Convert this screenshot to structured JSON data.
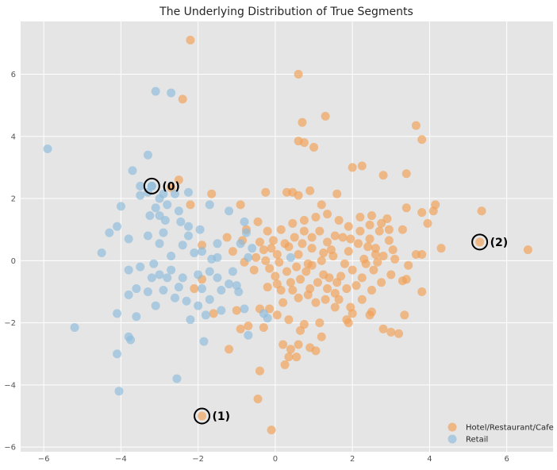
{
  "chart_data": {
    "type": "scatter",
    "title": "The Underlying Distribution of True Segments",
    "xlabel": "",
    "ylabel": "",
    "xlim": [
      -6.6,
      7.2
    ],
    "ylim": [
      -6.15,
      7.7
    ],
    "xticks": [
      -6,
      -4,
      -2,
      0,
      2,
      4,
      6
    ],
    "yticks": [
      -6,
      -4,
      -2,
      0,
      2,
      4,
      6
    ],
    "grid": true,
    "legend_position": "bottom-right",
    "colors": {
      "background": "#e5e5e5",
      "grid": "#ffffff",
      "Hotel/Restaurant/Cafe": "#f0a058",
      "Retail": "#8fbcdb"
    },
    "series": [
      {
        "name": "Hotel/Restaurant/Cafe",
        "points": [
          [
            -2.2,
            7.1
          ],
          [
            -2.4,
            5.2
          ],
          [
            0.6,
            6.0
          ],
          [
            0.7,
            4.45
          ],
          [
            1.3,
            4.65
          ],
          [
            0.6,
            3.85
          ],
          [
            0.75,
            3.8
          ],
          [
            1.0,
            3.65
          ],
          [
            3.65,
            4.35
          ],
          [
            3.8,
            3.9
          ],
          [
            2.0,
            3.0
          ],
          [
            2.25,
            3.05
          ],
          [
            2.8,
            2.75
          ],
          [
            3.4,
            2.8
          ],
          [
            -2.5,
            2.6
          ],
          [
            -2.7,
            2.35
          ],
          [
            -1.65,
            2.15
          ],
          [
            -0.25,
            2.2
          ],
          [
            0.3,
            2.2
          ],
          [
            0.45,
            2.2
          ],
          [
            0.6,
            2.1
          ],
          [
            0.9,
            2.25
          ],
          [
            1.6,
            2.15
          ],
          [
            -2.2,
            1.8
          ],
          [
            -0.9,
            1.8
          ],
          [
            1.2,
            1.8
          ],
          [
            4.15,
            1.8
          ],
          [
            4.1,
            1.6
          ],
          [
            5.35,
            1.6
          ],
          [
            3.4,
            1.7
          ],
          [
            2.2,
            1.4
          ],
          [
            2.5,
            1.45
          ],
          [
            2.9,
            1.35
          ],
          [
            2.75,
            1.2
          ],
          [
            3.8,
            1.55
          ],
          [
            3.95,
            1.2
          ],
          [
            3.3,
            1.0
          ],
          [
            2.95,
            1.0
          ],
          [
            -1.25,
            0.75
          ],
          [
            -0.85,
            0.65
          ],
          [
            -1.9,
            0.5
          ],
          [
            -1.1,
            0.3
          ],
          [
            -0.4,
            0.6
          ],
          [
            -0.8,
            -0.05
          ],
          [
            -1.9,
            -0.6
          ],
          [
            -2.1,
            -0.9
          ],
          [
            -1.0,
            -1.6
          ],
          [
            -0.4,
            -1.55
          ],
          [
            -1.6,
            -1.7
          ],
          [
            -0.7,
            -2.1
          ],
          [
            -0.3,
            -2.15
          ],
          [
            -0.9,
            -2.2
          ],
          [
            -1.2,
            -2.85
          ],
          [
            -0.4,
            -3.55
          ],
          [
            -0.45,
            -4.45
          ],
          [
            -0.1,
            -5.45
          ],
          [
            -1.9,
            -5.0
          ],
          [
            5.3,
            0.6
          ],
          [
            4.3,
            0.4
          ],
          [
            3.65,
            0.2
          ],
          [
            3.8,
            0.2
          ],
          [
            3.45,
            -0.15
          ],
          [
            3.3,
            -0.65
          ],
          [
            3.4,
            -0.6
          ],
          [
            3.8,
            -1.0
          ],
          [
            3.35,
            -1.75
          ],
          [
            2.8,
            -2.2
          ],
          [
            3.0,
            -2.3
          ],
          [
            3.2,
            -2.35
          ],
          [
            6.55,
            0.35
          ],
          [
            0.2,
            -2.7
          ],
          [
            0.4,
            -2.85
          ],
          [
            0.55,
            -3.1
          ],
          [
            0.35,
            -3.1
          ],
          [
            0.25,
            -3.35
          ],
          [
            0.6,
            -2.7
          ],
          [
            0.9,
            -2.8
          ],
          [
            1.05,
            -2.9
          ],
          [
            1.2,
            -2.45
          ],
          [
            1.15,
            -2.0
          ],
          [
            1.55,
            -1.5
          ],
          [
            1.85,
            -1.9
          ],
          [
            2.0,
            -1.7
          ],
          [
            2.45,
            -1.75
          ],
          [
            2.5,
            -1.65
          ],
          [
            1.9,
            -2.0
          ],
          [
            0.65,
            -2.25
          ],
          [
            0.75,
            -2.05
          ],
          [
            0.05,
            -1.75
          ],
          [
            0.35,
            -1.9
          ],
          [
            0.2,
            -1.35
          ],
          [
            -0.15,
            -1.55
          ],
          [
            -0.2,
            -0.85
          ],
          [
            0.05,
            -0.75
          ],
          [
            0.45,
            -0.95
          ],
          [
            0.65,
            -0.6
          ],
          [
            0.3,
            -0.35
          ],
          [
            0.55,
            -0.2
          ],
          [
            0.85,
            -0.1
          ],
          [
            0.1,
            -0.05
          ],
          [
            -0.1,
            0.4
          ],
          [
            0.25,
            0.55
          ],
          [
            0.7,
            0.55
          ],
          [
            0.95,
            0.4
          ],
          [
            1.25,
            0.25
          ],
          [
            1.35,
            0.6
          ],
          [
            1.55,
            0.8
          ],
          [
            1.75,
            0.75
          ],
          [
            1.95,
            0.7
          ],
          [
            2.15,
            0.55
          ],
          [
            2.4,
            0.45
          ],
          [
            2.6,
            0.4
          ],
          [
            2.8,
            0.15
          ],
          [
            2.55,
            -0.3
          ],
          [
            2.25,
            -0.55
          ],
          [
            2.1,
            -0.8
          ],
          [
            1.85,
            -0.9
          ],
          [
            1.55,
            -1.05
          ],
          [
            1.3,
            -1.25
          ],
          [
            1.05,
            -1.35
          ],
          [
            0.85,
            -1.1
          ],
          [
            0.6,
            -1.2
          ],
          [
            1.4,
            -0.55
          ],
          [
            1.7,
            -0.5
          ],
          [
            2.0,
            -0.3
          ],
          [
            1.8,
            -0.1
          ],
          [
            1.5,
            0.15
          ],
          [
            1.9,
            0.3
          ],
          [
            2.3,
            0.05
          ],
          [
            2.65,
            -0.05
          ],
          [
            2.45,
            0.7
          ],
          [
            2.2,
            0.95
          ],
          [
            1.9,
            1.1
          ],
          [
            1.65,
            1.3
          ],
          [
            1.35,
            1.5
          ],
          [
            1.05,
            1.4
          ],
          [
            0.75,
            1.3
          ],
          [
            0.45,
            1.2
          ],
          [
            0.15,
            1.0
          ],
          [
            -0.2,
            0.95
          ],
          [
            -0.45,
            1.25
          ],
          [
            -0.75,
            1.0
          ],
          [
            -0.5,
            0.1
          ],
          [
            -0.15,
            -0.25
          ],
          [
            0.0,
            -0.5
          ],
          [
            0.4,
            -0.7
          ],
          [
            0.8,
            -0.35
          ],
          [
            1.1,
            -0.7
          ],
          [
            1.35,
            -0.9
          ],
          [
            1.65,
            -1.25
          ],
          [
            1.95,
            -1.5
          ],
          [
            2.25,
            -1.25
          ],
          [
            2.5,
            -0.95
          ],
          [
            2.75,
            -0.7
          ],
          [
            3.0,
            -0.45
          ],
          [
            3.1,
            0.05
          ],
          [
            3.05,
            0.35
          ],
          [
            2.95,
            0.65
          ],
          [
            2.7,
            0.95
          ],
          [
            2.45,
            1.15
          ],
          [
            1.15,
            0.95
          ],
          [
            0.95,
            0.75
          ],
          [
            0.75,
            0.95
          ],
          [
            0.5,
            0.75
          ],
          [
            -0.05,
            0.65
          ],
          [
            -0.3,
            0.35
          ],
          [
            -0.55,
            -0.3
          ],
          [
            0.15,
            -0.95
          ],
          [
            0.9,
            -0.9
          ],
          [
            1.25,
            -0.45
          ],
          [
            1.6,
            -0.7
          ],
          [
            2.35,
            -0.1
          ],
          [
            2.6,
            0.2
          ],
          [
            1.45,
            0.35
          ],
          [
            1.2,
            0.0
          ],
          [
            0.95,
            -0.15
          ],
          [
            0.6,
            0.2
          ],
          [
            0.35,
            0.45
          ],
          [
            0.05,
            0.2
          ],
          [
            -0.25,
            0.0
          ]
        ]
      },
      {
        "name": "Retail",
        "points": [
          [
            -5.9,
            3.6
          ],
          [
            -3.1,
            5.45
          ],
          [
            -2.7,
            5.4
          ],
          [
            -3.3,
            3.4
          ],
          [
            -3.2,
            2.4
          ],
          [
            -3.0,
            2.0
          ],
          [
            -2.9,
            2.15
          ],
          [
            -2.6,
            2.15
          ],
          [
            -2.25,
            2.2
          ],
          [
            -3.5,
            2.4
          ],
          [
            -3.3,
            2.2
          ],
          [
            -3.5,
            2.1
          ],
          [
            -3.1,
            1.7
          ],
          [
            -2.8,
            1.8
          ],
          [
            -2.5,
            1.6
          ],
          [
            -4.0,
            1.75
          ],
          [
            -3.7,
            2.9
          ],
          [
            -4.3,
            0.9
          ],
          [
            -4.1,
            1.1
          ],
          [
            -3.25,
            1.45
          ],
          [
            -3.0,
            1.45
          ],
          [
            -2.85,
            1.3
          ],
          [
            -2.45,
            1.25
          ],
          [
            -2.25,
            1.1
          ],
          [
            -1.7,
            1.8
          ],
          [
            -1.2,
            1.6
          ],
          [
            -0.8,
            1.25
          ],
          [
            -0.75,
            0.9
          ],
          [
            -4.5,
            0.25
          ],
          [
            -3.8,
            0.7
          ],
          [
            -3.3,
            0.8
          ],
          [
            -3.0,
            0.55
          ],
          [
            -2.7,
            0.15
          ],
          [
            -2.4,
            0.5
          ],
          [
            -2.1,
            0.25
          ],
          [
            -1.9,
            0.3
          ],
          [
            -1.5,
            0.1
          ],
          [
            -3.8,
            -0.3
          ],
          [
            -3.5,
            -0.2
          ],
          [
            -3.2,
            -0.55
          ],
          [
            -3.0,
            -0.45
          ],
          [
            -2.7,
            -0.3
          ],
          [
            -2.4,
            -0.55
          ],
          [
            -2.0,
            -0.45
          ],
          [
            -1.7,
            -0.35
          ],
          [
            -1.5,
            -0.55
          ],
          [
            -1.2,
            -0.75
          ],
          [
            -1.0,
            -0.8
          ],
          [
            -3.6,
            -0.9
          ],
          [
            -3.3,
            -1.0
          ],
          [
            -2.9,
            -0.95
          ],
          [
            -2.6,
            -1.2
          ],
          [
            -2.3,
            -1.3
          ],
          [
            -2.0,
            -1.45
          ],
          [
            -1.7,
            -1.25
          ],
          [
            -1.4,
            -1.6
          ],
          [
            -3.8,
            -1.1
          ],
          [
            -3.1,
            -1.45
          ],
          [
            -4.1,
            -1.7
          ],
          [
            -3.6,
            -1.8
          ],
          [
            -2.2,
            -1.9
          ],
          [
            -1.8,
            -1.75
          ],
          [
            -0.8,
            -1.55
          ],
          [
            -0.7,
            -2.4
          ],
          [
            -0.3,
            -1.7
          ],
          [
            -5.2,
            -2.15
          ],
          [
            -3.8,
            -2.45
          ],
          [
            -3.75,
            -2.55
          ],
          [
            -4.1,
            -3.0
          ],
          [
            -4.05,
            -4.2
          ],
          [
            -2.55,
            -3.8
          ],
          [
            -1.85,
            -2.6
          ],
          [
            -3.2,
            2.4
          ],
          [
            -0.2,
            -1.85
          ],
          [
            0.4,
            0.1
          ],
          [
            -0.7,
            0.1
          ],
          [
            -1.1,
            -0.35
          ],
          [
            -1.65,
            0.05
          ],
          [
            -2.25,
            0.8
          ],
          [
            -2.8,
            -0.55
          ],
          [
            -3.15,
            -0.1
          ],
          [
            -2.5,
            -0.85
          ],
          [
            -1.9,
            -0.9
          ],
          [
            -1.4,
            -0.95
          ],
          [
            -0.9,
            0.55
          ],
          [
            -0.6,
            0.4
          ],
          [
            -2.9,
            0.9
          ],
          [
            -1.95,
            1.0
          ],
          [
            -1.5,
            0.55
          ],
          [
            -0.95,
            -1.0
          ]
        ]
      }
    ],
    "annotations": [
      {
        "label": "(0)",
        "x": -3.2,
        "y": 2.4
      },
      {
        "label": "(1)",
        "x": -1.9,
        "y": -5.0
      },
      {
        "label": "(2)",
        "x": 5.3,
        "y": 0.6
      }
    ]
  }
}
